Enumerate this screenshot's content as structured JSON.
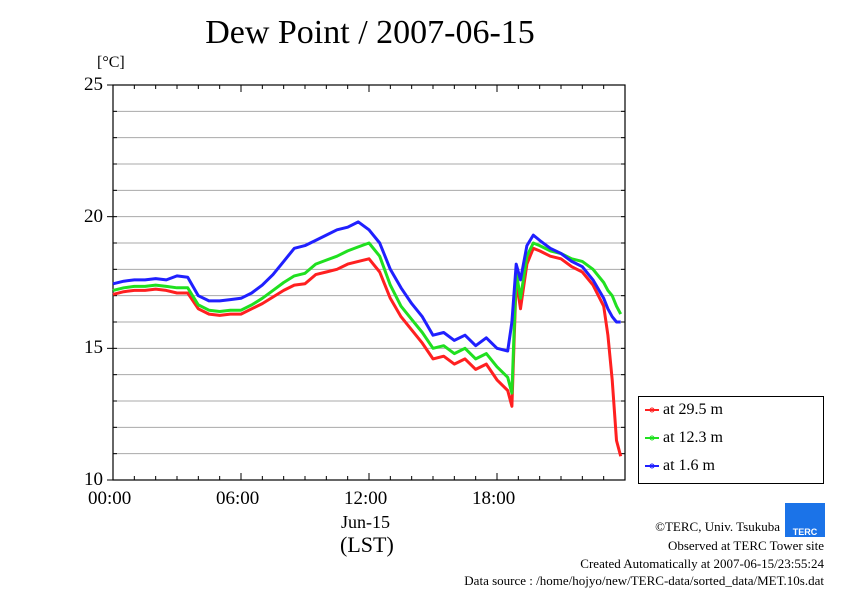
{
  "chart_data": {
    "type": "line",
    "title": "Dew Point / 2007-06-15",
    "ylabel": "[°C]",
    "xlabel": "Jun-15",
    "xlabel2": "(LST)",
    "ylim": [
      10,
      25
    ],
    "xlim_hours": [
      0,
      24
    ],
    "yticks": [
      10,
      15,
      20,
      25
    ],
    "xticks": [
      {
        "h": 0,
        "label": "00:00"
      },
      {
        "h": 6,
        "label": "06:00"
      },
      {
        "h": 12,
        "label": "12:00"
      },
      {
        "h": 18,
        "label": "18:00"
      }
    ],
    "grid": true,
    "legend_position": "bottom-right-outside",
    "x_hours": [
      0,
      0.5,
      1,
      1.5,
      2,
      2.5,
      3,
      3.5,
      4,
      4.5,
      5,
      5.5,
      6,
      6.5,
      7,
      7.5,
      8,
      8.5,
      9,
      9.5,
      10,
      10.5,
      11,
      11.5,
      12,
      12.5,
      13,
      13.5,
      14,
      14.5,
      15,
      15.5,
      16,
      16.5,
      17,
      17.5,
      18,
      18.5,
      18.7,
      18.9,
      19.1,
      19.4,
      19.7,
      20,
      20.5,
      21,
      21.5,
      22,
      22.5,
      23,
      23.2,
      23.4,
      23.6,
      23.8
    ],
    "series": [
      {
        "name": "at 29.5 m",
        "color": "#ff2020",
        "values": [
          17.05,
          17.15,
          17.2,
          17.2,
          17.25,
          17.2,
          17.1,
          17.1,
          16.5,
          16.3,
          16.25,
          16.3,
          16.3,
          16.5,
          16.7,
          16.95,
          17.2,
          17.4,
          17.45,
          17.8,
          17.9,
          18.0,
          18.2,
          18.3,
          18.4,
          17.9,
          16.9,
          16.2,
          15.7,
          15.2,
          14.6,
          14.7,
          14.4,
          14.6,
          14.2,
          14.4,
          13.8,
          13.4,
          12.8,
          17.6,
          16.5,
          18.2,
          18.8,
          18.7,
          18.5,
          18.4,
          18.1,
          17.9,
          17.4,
          16.6,
          15.5,
          13.8,
          11.5,
          10.9
        ]
      },
      {
        "name": "at 12.3 m",
        "color": "#20e020",
        "values": [
          17.2,
          17.3,
          17.35,
          17.35,
          17.4,
          17.35,
          17.3,
          17.3,
          16.65,
          16.45,
          16.4,
          16.45,
          16.45,
          16.65,
          16.9,
          17.2,
          17.5,
          17.75,
          17.85,
          18.2,
          18.35,
          18.5,
          18.7,
          18.85,
          19.0,
          18.5,
          17.4,
          16.6,
          16.1,
          15.6,
          15.0,
          15.1,
          14.8,
          15.0,
          14.6,
          14.8,
          14.3,
          13.9,
          13.3,
          17.9,
          16.9,
          18.5,
          19.0,
          18.9,
          18.7,
          18.6,
          18.4,
          18.3,
          18.0,
          17.5,
          17.2,
          17.0,
          16.6,
          16.3
        ]
      },
      {
        "name": "at 1.6 m",
        "color": "#2020ff",
        "values": [
          17.45,
          17.55,
          17.6,
          17.6,
          17.65,
          17.6,
          17.75,
          17.7,
          17.0,
          16.8,
          16.8,
          16.85,
          16.9,
          17.1,
          17.4,
          17.8,
          18.3,
          18.8,
          18.9,
          19.1,
          19.3,
          19.5,
          19.6,
          19.8,
          19.5,
          19.0,
          18.0,
          17.3,
          16.7,
          16.2,
          15.5,
          15.6,
          15.3,
          15.5,
          15.1,
          15.4,
          15.0,
          14.9,
          16.0,
          18.2,
          17.6,
          18.9,
          19.3,
          19.1,
          18.8,
          18.6,
          18.3,
          18.1,
          17.6,
          16.9,
          16.5,
          16.2,
          16.0,
          16.0
        ]
      }
    ]
  },
  "footer": {
    "copyright": "©TERC, Univ. Tsukuba",
    "observed": "Observed at TERC Tower site",
    "created": "Created Automatically at 2007-06-15/23:55:24",
    "source": "Data source : /home/hojyo/new/TERC-data/sorted_data/MET.10s.dat",
    "logo_text": "TERC"
  }
}
